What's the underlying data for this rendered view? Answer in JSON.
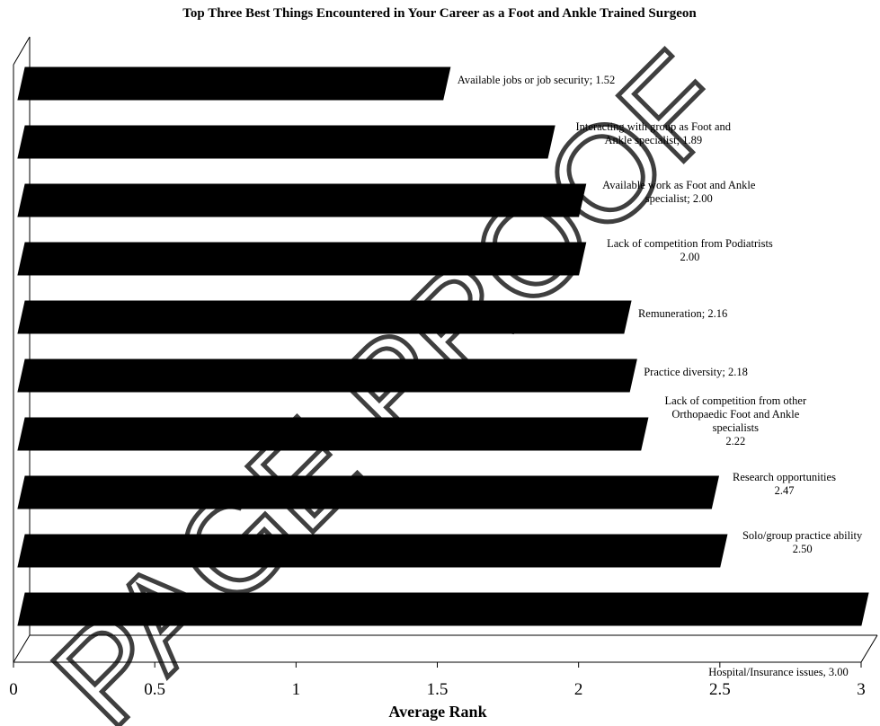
{
  "chart_data": {
    "type": "bar",
    "orientation": "horizontal",
    "title": "Top Three Best Things Encountered in Your Career as a Foot and Ankle Trained Surgeon",
    "xlabel": "Average Rank",
    "ylabel": "",
    "xlim": [
      0,
      3
    ],
    "xticks": [
      "0",
      "0.5",
      "1",
      "1.5",
      "2",
      "2.5",
      "3"
    ],
    "bar_color": "#000000",
    "grid": false,
    "legend": "none",
    "categories": [
      "Available jobs or job security",
      "Interacting with group as Foot and Ankle specialist",
      "Available work as Foot and Ankle specialist",
      "Lack of competition from Podiatrists",
      "Remuneration",
      "Practice diversity",
      "Lack of competition from other Orthopaedic Foot and Ankle specialists",
      "Research opportunities",
      "Solo/group practice ability",
      "Hospital/Insurance issues"
    ],
    "values": [
      1.52,
      1.89,
      2.0,
      2.0,
      2.16,
      2.18,
      2.22,
      2.47,
      2.5,
      3.0
    ],
    "data_labels": [
      [
        "Available jobs or job security; 1.52"
      ],
      [
        "Interacting with group as Foot and",
        "Ankle specialist; 1.89"
      ],
      [
        "Available work as Foot and Ankle",
        "specialist; 2.00"
      ],
      [
        "Lack of competition from Podiatrists",
        "2.00"
      ],
      [
        "Remuneration; 2.16"
      ],
      [
        "Practice diversity; 2.18"
      ],
      [
        "Lack of competition from other",
        "Orthopaedic Foot and Ankle",
        "specialists",
        "2.22"
      ],
      [
        "Research opportunities",
        "2.47"
      ],
      [
        "Solo/group practice ability",
        "2.50"
      ],
      [
        "Hospital/Insurance issues, 3.00"
      ]
    ]
  },
  "watermark": {
    "text": "PAGE PROOF",
    "color": "#000000"
  }
}
